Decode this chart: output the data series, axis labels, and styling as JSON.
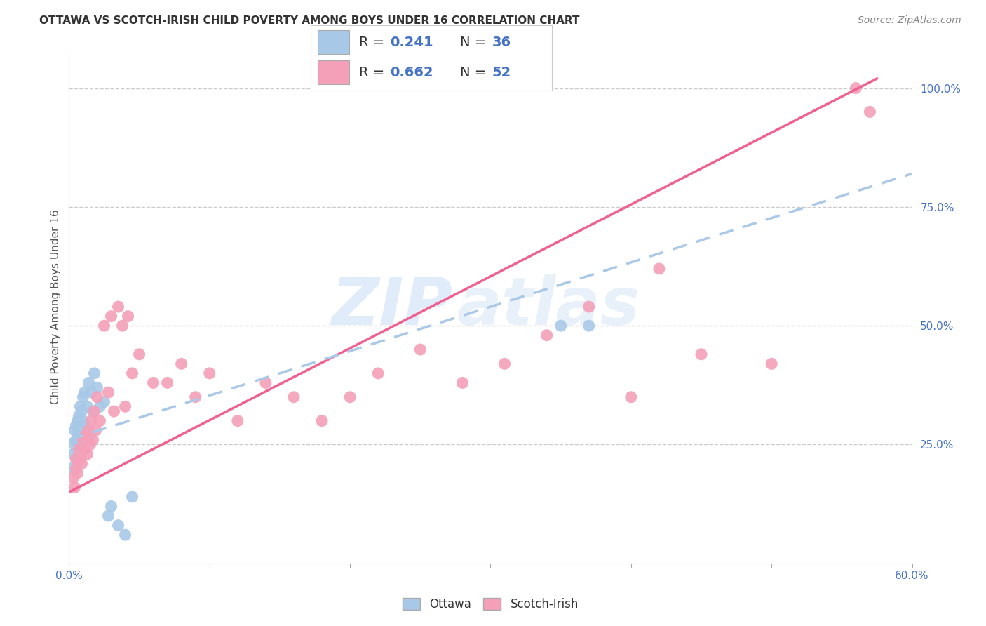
{
  "title": "OTTAWA VS SCOTCH-IRISH CHILD POVERTY AMONG BOYS UNDER 16 CORRELATION CHART",
  "source": "Source: ZipAtlas.com",
  "ylabel": "Child Poverty Among Boys Under 16",
  "xlim": [
    0.0,
    0.6
  ],
  "ylim": [
    0.0,
    1.08
  ],
  "yticks_right": [
    0.25,
    0.5,
    0.75,
    1.0
  ],
  "ytick_right_labels": [
    "25.0%",
    "50.0%",
    "75.0%",
    "100.0%"
  ],
  "watermark_zip": "ZIP",
  "watermark_atlas": "atlas",
  "ottawa_color": "#a8c8e8",
  "scotch_color": "#f4a0b8",
  "ottawa_line_color": "#aac8e8",
  "scotch_line_color": "#f06090",
  "blue_text_color": "#4472c4",
  "background_color": "#ffffff",
  "grid_color": "#cccccc",
  "ottawa_x": [
    0.002,
    0.003,
    0.004,
    0.004,
    0.005,
    0.005,
    0.005,
    0.006,
    0.006,
    0.007,
    0.007,
    0.008,
    0.008,
    0.009,
    0.009,
    0.01,
    0.01,
    0.011,
    0.011,
    0.012,
    0.013,
    0.014,
    0.015,
    0.016,
    0.017,
    0.018,
    0.02,
    0.022,
    0.025,
    0.028,
    0.03,
    0.035,
    0.04,
    0.045,
    0.35,
    0.37
  ],
  "ottawa_y": [
    0.2,
    0.23,
    0.25,
    0.28,
    0.22,
    0.26,
    0.29,
    0.27,
    0.3,
    0.25,
    0.31,
    0.28,
    0.33,
    0.24,
    0.32,
    0.3,
    0.35,
    0.29,
    0.36,
    0.27,
    0.33,
    0.38,
    0.27,
    0.36,
    0.32,
    0.4,
    0.37,
    0.33,
    0.34,
    0.1,
    0.12,
    0.08,
    0.06,
    0.14,
    0.5,
    0.5
  ],
  "scotch_x": [
    0.003,
    0.004,
    0.005,
    0.005,
    0.006,
    0.007,
    0.008,
    0.009,
    0.01,
    0.011,
    0.012,
    0.013,
    0.014,
    0.015,
    0.016,
    0.017,
    0.018,
    0.019,
    0.02,
    0.022,
    0.025,
    0.028,
    0.03,
    0.032,
    0.035,
    0.038,
    0.04,
    0.042,
    0.045,
    0.05,
    0.06,
    0.07,
    0.08,
    0.09,
    0.1,
    0.12,
    0.14,
    0.16,
    0.18,
    0.2,
    0.22,
    0.25,
    0.28,
    0.31,
    0.34,
    0.37,
    0.4,
    0.42,
    0.45,
    0.5,
    0.56,
    0.57
  ],
  "scotch_y": [
    0.18,
    0.16,
    0.2,
    0.22,
    0.19,
    0.24,
    0.22,
    0.21,
    0.26,
    0.24,
    0.27,
    0.23,
    0.28,
    0.25,
    0.3,
    0.26,
    0.32,
    0.28,
    0.35,
    0.3,
    0.5,
    0.36,
    0.52,
    0.32,
    0.54,
    0.5,
    0.33,
    0.52,
    0.4,
    0.44,
    0.38,
    0.38,
    0.42,
    0.35,
    0.4,
    0.3,
    0.38,
    0.35,
    0.3,
    0.35,
    0.4,
    0.45,
    0.38,
    0.42,
    0.48,
    0.54,
    0.35,
    0.62,
    0.44,
    0.42,
    1.0,
    0.95
  ],
  "scotch_trendline_x0": 0.0,
  "scotch_trendline_y0": 0.15,
  "scotch_trendline_x1": 0.575,
  "scotch_trendline_y1": 1.02,
  "ottawa_trendline_x0": 0.0,
  "ottawa_trendline_y0": 0.26,
  "ottawa_trendline_x1": 0.6,
  "ottawa_trendline_y1": 0.82
}
